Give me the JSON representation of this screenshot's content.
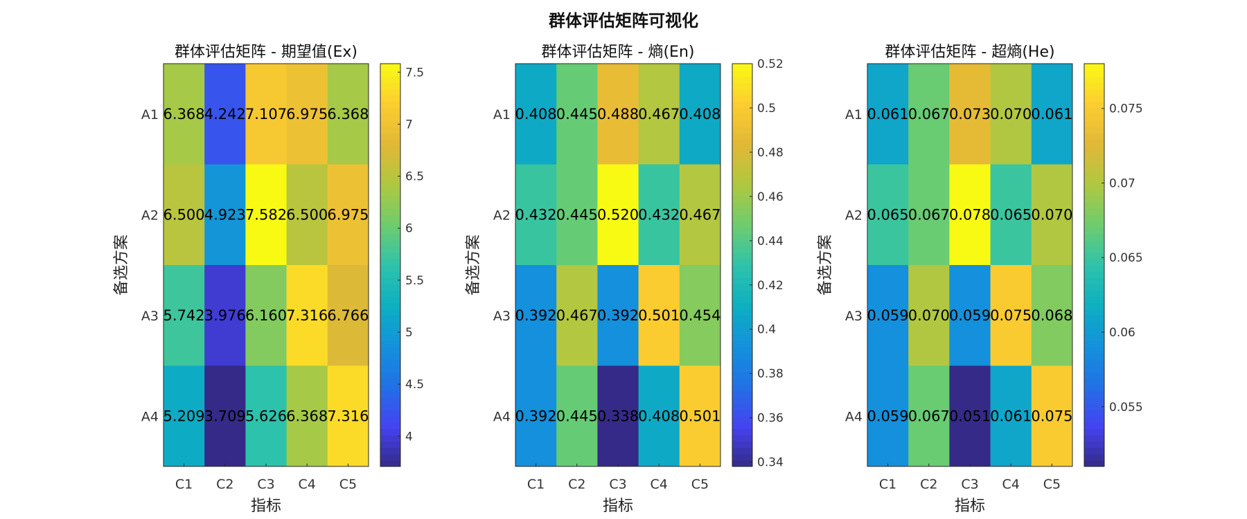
{
  "figure": {
    "title": "群体评估矩阵可视化"
  },
  "chart_data": [
    {
      "type": "heatmap",
      "title": "群体评估矩阵 - 期望值(Ex)",
      "xlabel": "指标",
      "ylabel": "备选方案",
      "columns": [
        "C1",
        "C2",
        "C3",
        "C4",
        "C5"
      ],
      "rows": [
        "A1",
        "A2",
        "A3",
        "A4"
      ],
      "values": [
        [
          6.368,
          4.242,
          7.107,
          6.975,
          6.368
        ],
        [
          6.5,
          4.923,
          7.582,
          6.5,
          6.975
        ],
        [
          5.742,
          3.976,
          6.16,
          7.316,
          6.766
        ],
        [
          5.209,
          3.709,
          5.626,
          6.368,
          7.316
        ]
      ],
      "labels": [
        [
          "6.368",
          "4.242",
          "7.107",
          "6.975",
          "6.368"
        ],
        [
          "6.500",
          "4.923",
          "7.582",
          "6.500",
          "6.975"
        ],
        [
          "5.742",
          "3.976",
          "6.160",
          "7.316",
          "6.766"
        ],
        [
          "5.209",
          "3.709",
          "5.626",
          "6.368",
          "7.316"
        ]
      ],
      "clim": [
        3.709,
        7.582
      ],
      "colorbar_ticks": [
        "4",
        "4.5",
        "5",
        "5.5",
        "6",
        "6.5",
        "7",
        "7.5"
      ],
      "colormap": "parula"
    },
    {
      "type": "heatmap",
      "title": "群体评估矩阵 - 熵(En)",
      "xlabel": "指标",
      "ylabel": "备选方案",
      "columns": [
        "C1",
        "C2",
        "C3",
        "C4",
        "C5"
      ],
      "rows": [
        "A1",
        "A2",
        "A3",
        "A4"
      ],
      "values": [
        [
          0.408,
          0.445,
          0.488,
          0.467,
          0.408
        ],
        [
          0.432,
          0.445,
          0.52,
          0.432,
          0.467
        ],
        [
          0.392,
          0.467,
          0.392,
          0.501,
          0.454
        ],
        [
          0.392,
          0.445,
          0.338,
          0.408,
          0.501
        ]
      ],
      "labels": [
        [
          "0.408",
          "0.445",
          "0.488",
          "0.467",
          "0.408"
        ],
        [
          "0.432",
          "0.445",
          "0.520",
          "0.432",
          "0.467"
        ],
        [
          "0.392",
          "0.467",
          "0.392",
          "0.501",
          "0.454"
        ],
        [
          "0.392",
          "0.445",
          "0.338",
          "0.408",
          "0.501"
        ]
      ],
      "clim": [
        0.338,
        0.52
      ],
      "colorbar_ticks": [
        "0.34",
        "0.36",
        "0.38",
        "0.4",
        "0.42",
        "0.44",
        "0.46",
        "0.48",
        "0.5",
        "0.52"
      ],
      "colormap": "parula"
    },
    {
      "type": "heatmap",
      "title": "群体评估矩阵 - 超熵(He)",
      "xlabel": "指标",
      "ylabel": "备选方案",
      "columns": [
        "C1",
        "C2",
        "C3",
        "C4",
        "C5"
      ],
      "rows": [
        "A1",
        "A2",
        "A3",
        "A4"
      ],
      "values": [
        [
          0.061,
          0.067,
          0.073,
          0.07,
          0.061
        ],
        [
          0.065,
          0.067,
          0.078,
          0.065,
          0.07
        ],
        [
          0.059,
          0.07,
          0.059,
          0.075,
          0.068
        ],
        [
          0.059,
          0.067,
          0.051,
          0.061,
          0.075
        ]
      ],
      "labels": [
        [
          "0.061",
          "0.067",
          "0.073",
          "0.070",
          "0.061"
        ],
        [
          "0.065",
          "0.067",
          "0.078",
          "0.065",
          "0.070"
        ],
        [
          "0.059",
          "0.070",
          "0.059",
          "0.075",
          "0.068"
        ],
        [
          "0.059",
          "0.067",
          "0.051",
          "0.061",
          "0.075"
        ]
      ],
      "clim": [
        0.051,
        0.078
      ],
      "colorbar_ticks": [
        "0.055",
        "0.06",
        "0.065",
        "0.07",
        "0.075"
      ],
      "colormap": "parula"
    }
  ]
}
